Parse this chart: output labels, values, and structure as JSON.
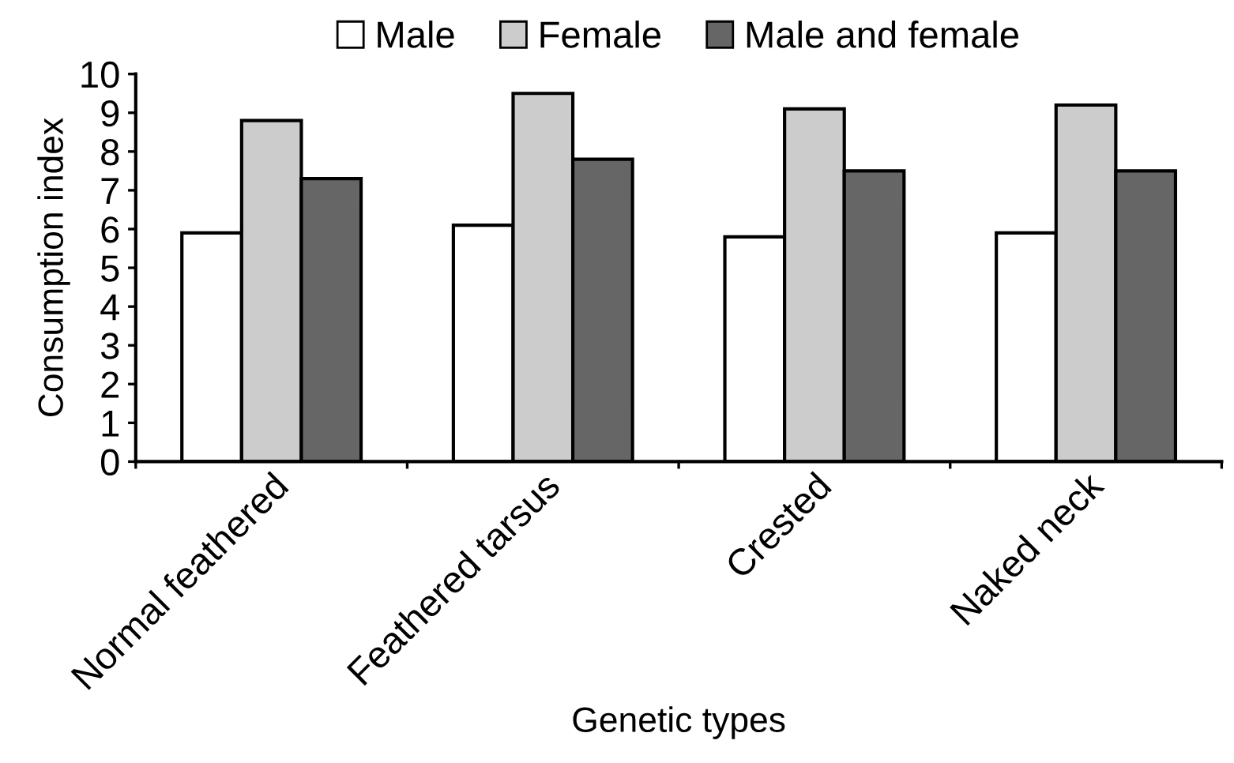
{
  "chart_data": {
    "type": "bar",
    "xlabel": "Genetic types",
    "ylabel": "Consumption index",
    "categories": [
      "Normal feathered",
      "Feathered tarsus",
      "Crested",
      "Naked neck"
    ],
    "series": [
      {
        "name": "Male",
        "color": "#ffffff",
        "values": [
          5.9,
          6.1,
          5.8,
          5.9
        ]
      },
      {
        "name": "Female",
        "color": "#cccccc",
        "values": [
          8.8,
          9.5,
          9.1,
          9.2
        ]
      },
      {
        "name": "Male and female",
        "color": "#666666",
        "values": [
          7.3,
          7.8,
          7.5,
          7.5
        ]
      }
    ],
    "ylim": [
      0,
      10
    ],
    "yticks": [
      0,
      1,
      2,
      3,
      4,
      5,
      6,
      7,
      8,
      9,
      10
    ],
    "grid": false,
    "legend": "top"
  }
}
